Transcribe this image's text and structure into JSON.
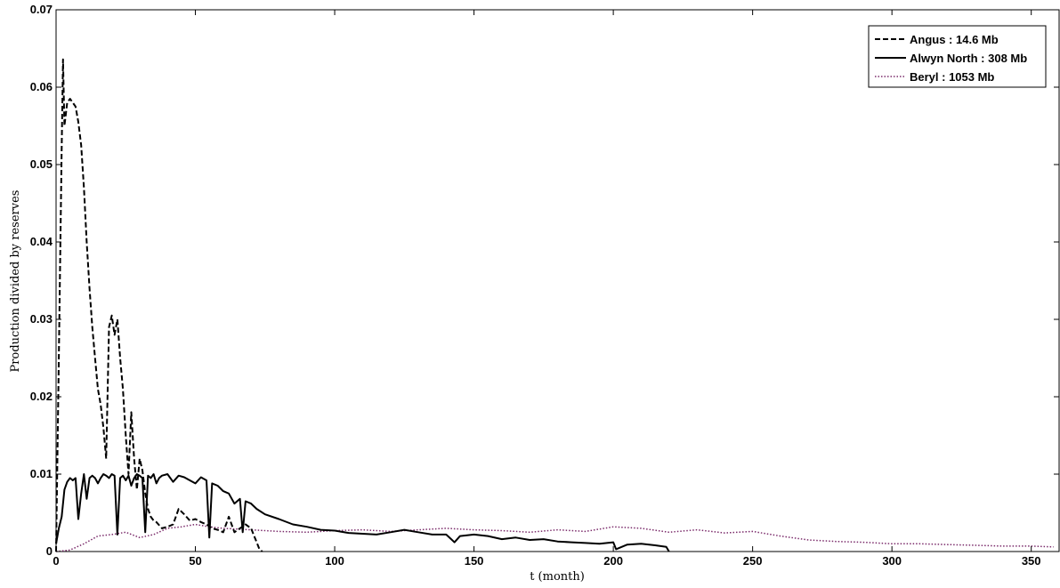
{
  "chart_data": {
    "type": "line",
    "title": "",
    "xlabel": "t (month)",
    "ylabel": "Production divided by reserves",
    "xlim": [
      0,
      360
    ],
    "ylim": [
      0,
      0.07
    ],
    "x_ticks": [
      "0",
      "50",
      "100",
      "150",
      "200",
      "250",
      "300",
      "350"
    ],
    "y_ticks": [
      "0",
      "0.01",
      "0.02",
      "0.03",
      "0.04",
      "0.05",
      "0.06",
      "0.07"
    ],
    "grid": false,
    "legend_position": "top-right",
    "series": [
      {
        "name": "Angus : 14.6 Mb",
        "style": "dashed",
        "color": "#000000",
        "x": [
          0,
          1,
          2,
          2.5,
          3,
          4,
          5,
          6,
          7,
          8,
          9,
          10,
          11,
          12,
          13,
          14,
          15,
          16,
          17,
          18,
          19,
          20,
          21,
          22,
          23,
          24,
          25,
          26,
          27,
          28,
          29,
          30,
          31,
          32,
          33,
          34,
          35,
          36,
          38,
          40,
          42,
          44,
          46,
          48,
          50,
          52,
          54,
          56,
          58,
          60,
          62,
          64,
          66,
          68,
          70,
          72,
          73,
          74
        ],
        "y": [
          0,
          0.025,
          0.052,
          0.0636,
          0.055,
          0.058,
          0.0585,
          0.058,
          0.0575,
          0.0555,
          0.0525,
          0.047,
          0.04,
          0.034,
          0.029,
          0.025,
          0.021,
          0.019,
          0.016,
          0.012,
          0.029,
          0.0305,
          0.028,
          0.03,
          0.025,
          0.021,
          0.015,
          0.01,
          0.018,
          0.012,
          0.008,
          0.012,
          0.0105,
          0.0075,
          0.0055,
          0.0045,
          0.004,
          0.0038,
          0.003,
          0.0032,
          0.0035,
          0.0055,
          0.0048,
          0.004,
          0.0042,
          0.0038,
          0.0035,
          0.003,
          0.0028,
          0.0025,
          0.0045,
          0.0025,
          0.003,
          0.0035,
          0.003,
          0.0012,
          0.0003,
          0
        ]
      },
      {
        "name": "Alwyn North : 308 Mb",
        "style": "solid",
        "color": "#000000",
        "x": [
          0,
          1,
          2,
          3,
          4,
          5,
          6,
          7,
          8,
          9,
          10,
          11,
          12,
          13,
          14,
          15,
          16,
          17,
          18,
          19,
          20,
          21,
          22,
          23,
          24,
          25,
          26,
          27,
          28,
          29,
          30,
          31,
          32,
          33,
          34,
          35,
          36,
          37,
          38,
          40,
          42,
          44,
          46,
          48,
          50,
          52,
          54,
          55,
          56,
          58,
          60,
          62,
          64,
          66,
          67,
          68,
          70,
          72,
          75,
          80,
          85,
          90,
          95,
          100,
          105,
          110,
          115,
          120,
          125,
          130,
          135,
          140,
          143,
          145,
          150,
          155,
          160,
          165,
          170,
          175,
          180,
          185,
          190,
          195,
          200,
          201,
          205,
          210,
          215,
          219,
          220
        ],
        "y": [
          0.001,
          0.003,
          0.0045,
          0.008,
          0.009,
          0.0095,
          0.0092,
          0.0095,
          0.0042,
          0.0075,
          0.01,
          0.0068,
          0.0095,
          0.0098,
          0.0095,
          0.0088,
          0.0095,
          0.01,
          0.0098,
          0.0095,
          0.01,
          0.0098,
          0.0022,
          0.0095,
          0.0098,
          0.0092,
          0.0098,
          0.0085,
          0.0095,
          0.01,
          0.0098,
          0.0095,
          0.0025,
          0.0098,
          0.0095,
          0.01,
          0.0088,
          0.0095,
          0.0098,
          0.01,
          0.009,
          0.0098,
          0.0096,
          0.0092,
          0.0088,
          0.0096,
          0.0092,
          0.0018,
          0.0088,
          0.0085,
          0.0078,
          0.0075,
          0.0062,
          0.0068,
          0.0025,
          0.0065,
          0.0062,
          0.0055,
          0.0048,
          0.0042,
          0.0035,
          0.0032,
          0.0028,
          0.0027,
          0.0024,
          0.0023,
          0.0022,
          0.0025,
          0.0028,
          0.0025,
          0.0022,
          0.0022,
          0.0012,
          0.002,
          0.0022,
          0.002,
          0.0016,
          0.0018,
          0.0015,
          0.0016,
          0.0013,
          0.0012,
          0.0011,
          0.001,
          0.0012,
          0.0003,
          0.0009,
          0.001,
          0.0008,
          0.0006,
          0
        ]
      },
      {
        "name": "Beryl : 1053 Mb",
        "style": "dotted",
        "color": "#7a2a6a",
        "x": [
          0,
          5,
          10,
          15,
          20,
          25,
          30,
          35,
          40,
          45,
          50,
          55,
          60,
          70,
          80,
          90,
          100,
          110,
          120,
          130,
          140,
          150,
          160,
          170,
          180,
          190,
          200,
          210,
          220,
          230,
          240,
          250,
          260,
          270,
          280,
          290,
          300,
          310,
          320,
          330,
          340,
          350,
          358
        ],
        "y": [
          0,
          0.0002,
          0.001,
          0.002,
          0.0022,
          0.0025,
          0.0018,
          0.0022,
          0.003,
          0.0032,
          0.0035,
          0.0032,
          0.003,
          0.0028,
          0.0026,
          0.0025,
          0.0027,
          0.0028,
          0.0026,
          0.0028,
          0.003,
          0.0028,
          0.0027,
          0.0025,
          0.0028,
          0.0026,
          0.0032,
          0.003,
          0.0025,
          0.0028,
          0.0024,
          0.0026,
          0.002,
          0.0015,
          0.0013,
          0.0012,
          0.001,
          0.001,
          0.0009,
          0.0008,
          0.0007,
          0.0007,
          0.0006
        ]
      }
    ]
  }
}
